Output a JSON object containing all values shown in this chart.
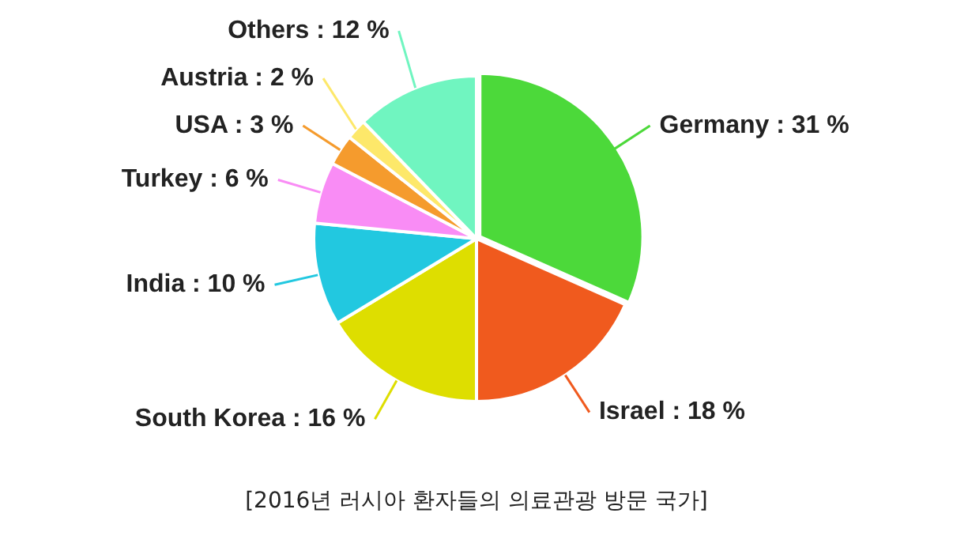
{
  "chart_data": {
    "type": "pie",
    "title": "[2016년 러시아 환자들의 의료관광 방문 국가]",
    "categories": [
      "Germany",
      "Israel",
      "South Korea",
      "India",
      "Turkey",
      "USA",
      "Austria",
      "Others"
    ],
    "values": [
      31,
      18,
      16,
      10,
      6,
      3,
      2,
      12
    ],
    "value_labels": [
      "31 %",
      "18 %",
      "16 %",
      "10 %",
      "6 %",
      "3 %",
      "2 %",
      "12 %"
    ],
    "colors": [
      "#4cd93a",
      "#f05a1e",
      "#dede00",
      "#22c8e0",
      "#f98cf5",
      "#f59b2d",
      "#fde86a",
      "#70f5c0"
    ],
    "legend": false
  }
}
